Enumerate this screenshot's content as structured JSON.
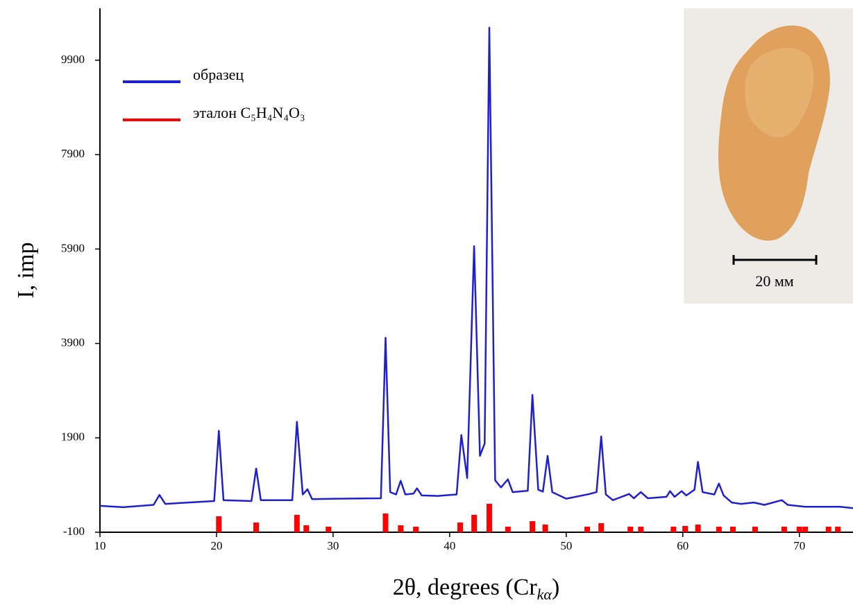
{
  "chart_data": {
    "type": "line",
    "x_label": [
      "2θ, degrees (Cr",
      "kα",
      ")"
    ],
    "y_label": "I, imp",
    "xlim": [
      10,
      74.6
    ],
    "xticks": [
      10,
      20,
      30,
      40,
      50,
      60,
      70
    ],
    "ylim": [
      -100,
      11000
    ],
    "yticks": [
      -100,
      1900,
      3900,
      5900,
      7900,
      9900
    ],
    "legend": "upper left",
    "series": [
      {
        "name": "образец",
        "type": "line",
        "color": "#1f1fd0",
        "x": [
          10,
          12,
          14.6,
          15.1,
          15.6,
          19.8,
          20.2,
          20.6,
          23.0,
          23.4,
          23.8,
          26.5,
          26.9,
          27.4,
          27.8,
          28.2,
          30.3,
          34.1,
          34.5,
          34.9,
          35.4,
          35.8,
          36.2,
          36.9,
          37.2,
          37.6,
          39,
          40.6,
          41.0,
          41.5,
          42.1,
          42.6,
          43.0,
          43.4,
          43.9,
          44.4,
          45.0,
          45.4,
          46.7,
          47.1,
          47.6,
          48.0,
          48.4,
          48.8,
          50,
          52,
          52.6,
          53.0,
          53.4,
          54,
          55.4,
          55.8,
          56.4,
          57,
          58.6,
          58.9,
          59.3,
          59.9,
          60.3,
          61.0,
          61.3,
          61.7,
          62.7,
          63.1,
          63.5,
          64.2,
          65,
          66.1,
          67,
          68.5,
          69,
          70.5,
          73.5,
          74.6
        ],
        "values": [
          460,
          430,
          480,
          690,
          500,
          560,
          2050,
          580,
          560,
          1250,
          580,
          580,
          2240,
          700,
          810,
          600,
          610,
          620,
          4020,
          750,
          700,
          990,
          700,
          720,
          830,
          680,
          670,
          700,
          1960,
          1050,
          5960,
          1520,
          1780,
          10590,
          1000,
          850,
          1020,
          750,
          780,
          2810,
          800,
          760,
          1520,
          750,
          610,
          710,
          750,
          1930,
          700,
          580,
          710,
          620,
          750,
          620,
          650,
          770,
          650,
          770,
          680,
          800,
          1390,
          750,
          700,
          930,
          680,
          530,
          500,
          530,
          480,
          580,
          480,
          440,
          440,
          410
        ]
      },
      {
        "name": "эталон C₅H₄N₄O₃",
        "type": "bar",
        "color": "#ff0000",
        "x": [
          20.2,
          23.4,
          26.9,
          27.7,
          29.6,
          34.5,
          35.8,
          37.1,
          40.9,
          42.1,
          43.4,
          45.0,
          47.1,
          48.2,
          51.8,
          53.0,
          55.5,
          56.4,
          59.2,
          60.2,
          61.3,
          63.1,
          64.3,
          66.2,
          68.7,
          70.0,
          70.5,
          72.5,
          73.3
        ],
        "values": [
          238,
          106,
          268,
          47,
          18,
          297,
          47,
          18,
          106,
          268,
          503,
          18,
          135,
          62,
          18,
          91,
          18,
          18,
          18,
          32,
          62,
          18,
          18,
          18,
          18,
          18,
          18,
          18,
          18
        ]
      }
    ],
    "inset": {
      "scale_label": "20 мм"
    }
  }
}
